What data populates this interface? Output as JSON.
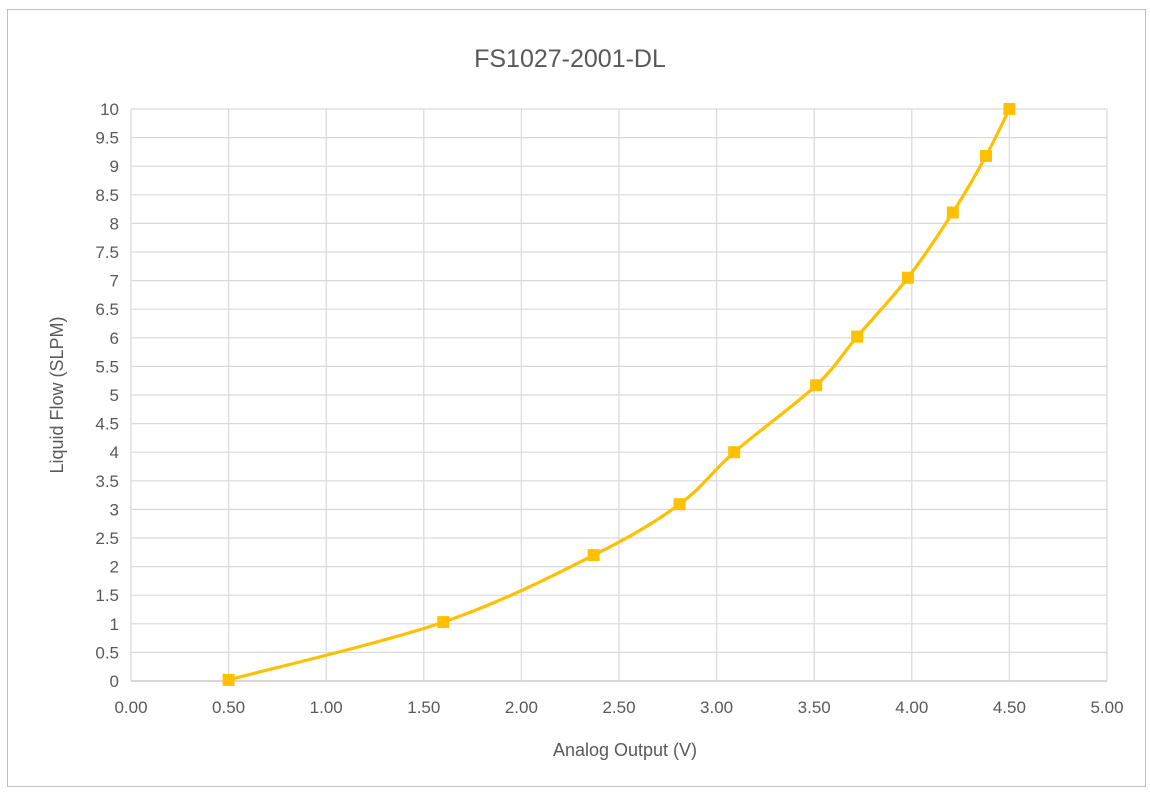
{
  "chart_data": {
    "type": "line",
    "title": "FS1027-2001-DL",
    "xlabel": "Analog Output (V)",
    "ylabel": "Liquid Flow (SLPM)",
    "xlim": [
      0,
      5
    ],
    "ylim": [
      0,
      10
    ],
    "x_ticks": [
      "0.00",
      "0.50",
      "1.00",
      "1.50",
      "2.00",
      "2.50",
      "3.00",
      "3.50",
      "4.00",
      "4.50",
      "5.00"
    ],
    "y_ticks": [
      "0",
      "0.5",
      "1",
      "1.5",
      "2",
      "2.5",
      "3",
      "3.5",
      "4",
      "4.5",
      "5",
      "5.5",
      "6",
      "6.5",
      "7",
      "7.5",
      "8",
      "8.5",
      "9",
      "9.5",
      "10"
    ],
    "grid": true,
    "smooth": true,
    "marker": "square",
    "color": "#FFC000",
    "series": [
      {
        "x": [
          0.5,
          1.6,
          2.37,
          2.81,
          3.09,
          3.51,
          3.72,
          3.98,
          4.21,
          4.38,
          4.5
        ],
        "y": [
          0.02,
          1.03,
          2.2,
          3.09,
          4.0,
          5.17,
          6.02,
          7.05,
          8.19,
          9.18,
          10.0
        ]
      }
    ]
  }
}
